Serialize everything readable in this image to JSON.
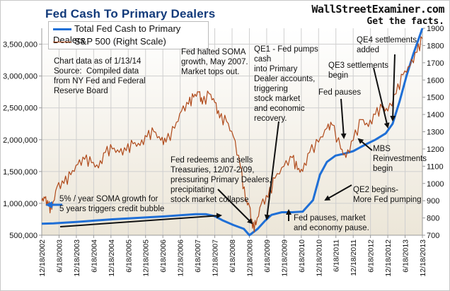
{
  "chart_data": {
    "type": "line",
    "title": "Fed Cash To Primary Dealers",
    "brand": {
      "site": "WallStreetExaminer.com",
      "tagline": "Get the facts."
    },
    "legend_position": "top-left",
    "grid": true,
    "x_tick_labels": [
      "12/18/2002",
      "6/18/2003",
      "12/18/2003",
      "6/18/2004",
      "12/18/2004",
      "6/18/2005",
      "12/18/2005",
      "6/18/2006",
      "12/18/2006",
      "6/18/2007",
      "12/18/2007",
      "6/18/2008",
      "12/18/2008",
      "6/18/2009",
      "12/18/2009",
      "6/18/2010",
      "12/18/2010",
      "6/18/2011",
      "12/18/2011",
      "6/18/2012",
      "12/18/2012",
      "6/18/2013",
      "12/18/2013"
    ],
    "x_range": [
      2002.96,
      2013.96
    ],
    "left_axis": {
      "ylim": [
        500000,
        3750000
      ],
      "ticks": [
        500000,
        1000000,
        1500000,
        2000000,
        2500000,
        3000000,
        3500000
      ],
      "tick_labels": [
        "500,000",
        "1,000,000",
        "1,500,000",
        "2,000,000",
        "2,500,000",
        "3,000,000",
        "3,500,000"
      ]
    },
    "right_axis": {
      "ylim": [
        700,
        1900
      ],
      "ticks": [
        700,
        800,
        900,
        1000,
        1100,
        1200,
        1300,
        1400,
        1500,
        1600,
        1700,
        1800,
        1900
      ],
      "tick_labels": [
        "700",
        "800",
        "900",
        "1000",
        "1100",
        "1200",
        "1300",
        "1400",
        "1500",
        "1600",
        "1700",
        "1800",
        "1900"
      ]
    },
    "series": [
      {
        "name": "Total Fed Cash to Primary Dealers",
        "axis": "left",
        "color": "#1f6fd6",
        "x": [
          2002.96,
          2003.3,
          2003.7,
          2004.0,
          2004.5,
          2005.0,
          2005.5,
          2006.0,
          2006.5,
          2007.0,
          2007.4,
          2007.7,
          2007.96,
          2008.2,
          2008.5,
          2008.8,
          2008.96,
          2009.2,
          2009.4,
          2009.6,
          2009.9,
          2010.2,
          2010.5,
          2010.8,
          2011.0,
          2011.2,
          2011.45,
          2011.7,
          2011.96,
          2012.3,
          2012.6,
          2012.9,
          2013.1,
          2013.3,
          2013.5,
          2013.7,
          2013.96
        ],
        "values": [
          680000,
          685000,
          700000,
          710000,
          730000,
          750000,
          765000,
          780000,
          795000,
          815000,
          830000,
          830000,
          800000,
          730000,
          660000,
          600000,
          500000,
          600000,
          720000,
          820000,
          860000,
          860000,
          870000,
          1050000,
          1450000,
          1650000,
          1750000,
          1780000,
          1820000,
          1920000,
          2000000,
          2100000,
          2250000,
          2600000,
          3000000,
          3350000,
          3750000
        ]
      },
      {
        "name": "S&P 500 (Right Scale)",
        "axis": "right",
        "color": "#b04a1a",
        "x": [
          2002.96,
          2003.05,
          2003.15,
          2003.25,
          2003.4,
          2003.6,
          2003.8,
          2004.0,
          2004.2,
          2004.4,
          2004.6,
          2004.8,
          2005.0,
          2005.2,
          2005.4,
          2005.6,
          2005.8,
          2006.0,
          2006.2,
          2006.4,
          2006.55,
          2006.8,
          2007.0,
          2007.2,
          2007.35,
          2007.5,
          2007.6,
          2007.8,
          2007.96,
          2008.1,
          2008.3,
          2008.5,
          2008.7,
          2008.85,
          2008.96,
          2009.05,
          2009.15,
          2009.3,
          2009.5,
          2009.7,
          2009.96,
          2010.2,
          2010.35,
          2010.5,
          2010.7,
          2010.96,
          2011.2,
          2011.35,
          2011.6,
          2011.75,
          2011.96,
          2012.2,
          2012.4,
          2012.6,
          2012.8,
          2012.96,
          2013.2,
          2013.4,
          2013.6,
          2013.8,
          2013.96
        ],
        "values": [
          900,
          915,
          870,
          850,
          980,
          1000,
          1050,
          1110,
          1140,
          1120,
          1090,
          1180,
          1200,
          1180,
          1190,
          1230,
          1220,
          1270,
          1300,
          1250,
          1240,
          1320,
          1420,
          1460,
          1500,
          1530,
          1460,
          1520,
          1470,
          1380,
          1360,
          1270,
          1100,
          900,
          870,
          740,
          760,
          880,
          920,
          1030,
          1100,
          1150,
          1080,
          1070,
          1180,
          1240,
          1320,
          1340,
          1200,
          1150,
          1250,
          1370,
          1330,
          1400,
          1440,
          1420,
          1520,
          1630,
          1680,
          1760,
          1840
        ]
      }
    ],
    "annotations": [
      "Chart data as of 1/13/14\nSource:  Compiled data\nfrom NY Fed and Federal\nReserve Board",
      "Fed halted SOMA\ngrowth, May 2007.\nMarket tops out.",
      "QE1 - Fed pumps\ncash\ninto Primary\nDealer accounts,\ntriggering\nstock market\nand economic\nrecovery.",
      "QE4 settlements\nadded",
      "QE3 settlements\nbegin",
      "Fed pauses",
      "MBS\nReinvestments\nbegin",
      "QE2 begins-\nMore Fed pumping",
      "Fed pauses, market\nand economy pause.",
      "Fed redeems and sells\nTreasuries, 12/07-2/09,\npressuring Primary Dealers,\nprecipitating\nstock market collapse",
      "5% / year SOMA growth for\n5 years triggers credit bubble"
    ]
  }
}
